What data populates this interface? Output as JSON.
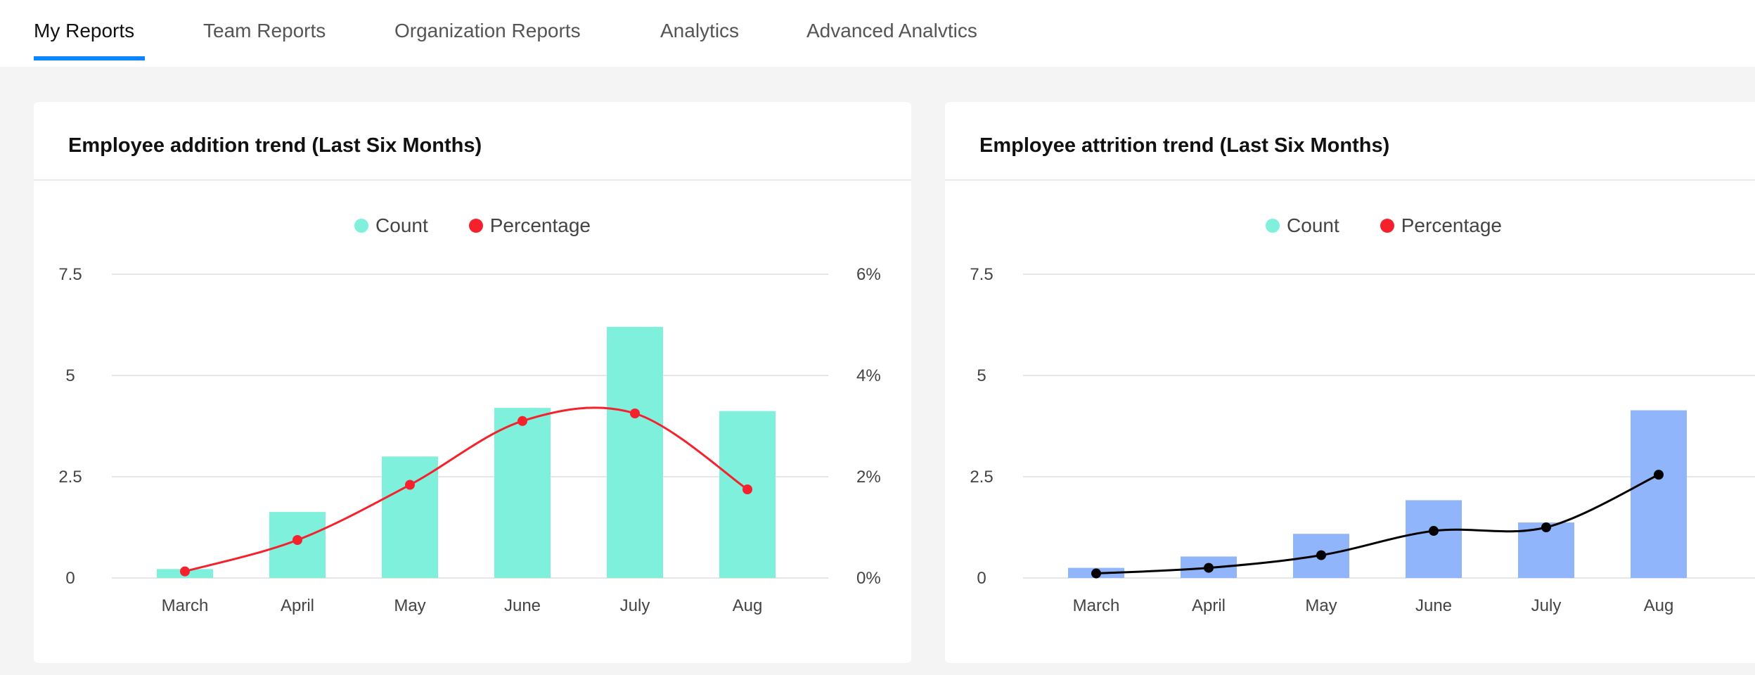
{
  "tabs": [
    {
      "label": "My Reports",
      "active": true
    },
    {
      "label": "Team Reports",
      "active": false
    },
    {
      "label": "Organization Reports",
      "active": false
    },
    {
      "label": "Analytics",
      "active": false
    },
    {
      "label": "Advanced Analvtics",
      "active": false
    }
  ],
  "colors": {
    "accent": "#0a84ff",
    "background": "#f4f4f4"
  },
  "chart_data": [
    {
      "type": "bar+line",
      "title": "Employee addition trend (Last Six Months)",
      "categories": [
        "March",
        "April",
        "May",
        "June",
        "July",
        "Aug"
      ],
      "legend": {
        "position": "top",
        "entries": [
          "Count",
          "Percentage"
        ]
      },
      "series": [
        {
          "name": "Count",
          "type": "bar",
          "axis": "left",
          "color": "#7ef0dc",
          "values": [
            0.22,
            1.63,
            3.0,
            4.2,
            6.2,
            4.12
          ]
        },
        {
          "name": "Percentage",
          "type": "line",
          "axis": "right",
          "color": "#f5222d",
          "values": [
            0.13,
            0.75,
            1.84,
            3.1,
            3.25,
            1.75
          ]
        }
      ],
      "y_left": {
        "ticks": [
          "0",
          "2.5",
          "5",
          "7.5"
        ],
        "range": [
          0,
          7.5
        ]
      },
      "y_right": {
        "ticks": [
          "0%",
          "2%",
          "4%",
          "6%"
        ],
        "range": [
          0,
          6
        ]
      },
      "grid": true
    },
    {
      "type": "bar+line",
      "title": "Employee attrition trend (Last Six Months)",
      "categories": [
        "March",
        "April",
        "May",
        "June",
        "July",
        "Aug"
      ],
      "legend": {
        "position": "top",
        "entries": [
          "Count",
          "Percentage"
        ]
      },
      "series": [
        {
          "name": "Count",
          "type": "bar",
          "axis": "left",
          "color": "#91b5fa",
          "values": [
            0.25,
            0.53,
            1.09,
            1.92,
            1.37,
            4.14
          ]
        },
        {
          "name": "Percentage",
          "type": "line",
          "axis": "right",
          "color": "#000000",
          "values": [
            0.09,
            0.2,
            0.45,
            0.93,
            1.0,
            2.04
          ]
        }
      ],
      "legend_colors": [
        "#7ef0dc",
        "#f5222d"
      ],
      "y_left": {
        "ticks": [
          "0",
          "2.5",
          "5",
          "7.5"
        ],
        "range": [
          0,
          7.5
        ]
      },
      "y_right": {
        "range": [
          0,
          6
        ]
      },
      "grid": true
    }
  ]
}
